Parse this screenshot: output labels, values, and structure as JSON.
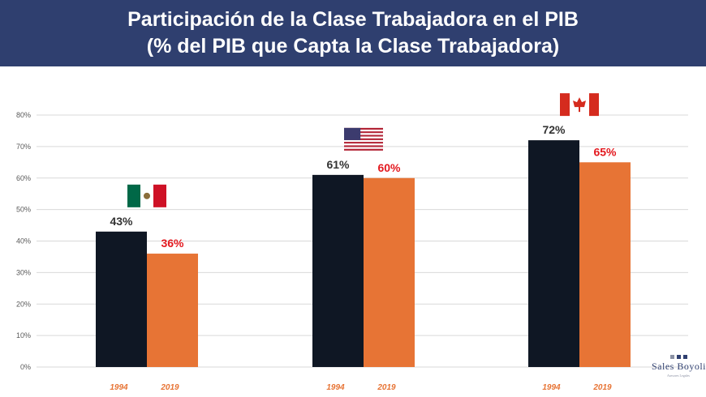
{
  "header": {
    "title_line1": "Participación de la Clase Trabajadora en el PIB",
    "title_line2": "(% del PIB que Capta la Clase Trabajadora)"
  },
  "colors": {
    "header_bg": "#2f3f6f",
    "bar_1994": "#0f1724",
    "bar_2019": "#e77435",
    "label_1994": "#333333",
    "label_2019": "#e3191f",
    "year_text": "#e77435"
  },
  "chart_data": {
    "type": "bar",
    "categories": [
      "México",
      "Estados Unidos",
      "Canadá"
    ],
    "flags": [
      "mexico-flag",
      "usa-flag",
      "canada-flag"
    ],
    "series": [
      {
        "name": "1994",
        "values": [
          43,
          61,
          72
        ],
        "labels": [
          "43%",
          "61%",
          "72%"
        ]
      },
      {
        "name": "2019",
        "values": [
          36,
          60,
          65
        ],
        "labels": [
          "36%",
          "60%",
          "65%"
        ]
      }
    ],
    "ylim": [
      0,
      80
    ],
    "yticks": [
      "0%",
      "10%",
      "20%",
      "30%",
      "40%",
      "50%",
      "60%",
      "70%",
      "80%"
    ],
    "grid": true
  },
  "brand": {
    "name": "Sales Boyoli",
    "subtitle": "Asesores Legales"
  }
}
